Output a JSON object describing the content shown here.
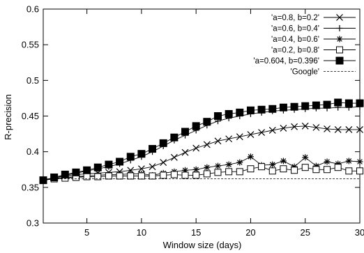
{
  "chart_data": {
    "type": "line",
    "title": "",
    "xlabel": "Window size (days)",
    "ylabel": "R-precision",
    "xlim": [
      1,
      30
    ],
    "ylim": [
      0.3,
      0.6
    ],
    "xticks": [
      5,
      10,
      15,
      20,
      25,
      30
    ],
    "yticks": [
      0.3,
      0.35,
      0.4,
      0.45,
      0.5,
      0.55,
      0.6
    ],
    "xtick_labels": [
      "5",
      "10",
      "15",
      "20",
      "25",
      "30"
    ],
    "ytick_labels": [
      "0.3",
      "0.35",
      "0.4",
      "0.45",
      "0.5",
      "0.55",
      "0.6"
    ],
    "grid": false,
    "legend_position": "top-right",
    "x": [
      1,
      2,
      3,
      4,
      5,
      6,
      7,
      8,
      9,
      10,
      11,
      12,
      13,
      14,
      15,
      16,
      17,
      18,
      19,
      20,
      21,
      22,
      23,
      24,
      25,
      26,
      27,
      28,
      29,
      30
    ],
    "series": [
      {
        "name": "'a=0.8, b=0.2'",
        "marker": "x",
        "values": [
          0.36,
          0.363,
          0.366,
          0.368,
          0.369,
          0.37,
          0.371,
          0.372,
          0.374,
          0.376,
          0.379,
          0.385,
          0.392,
          0.399,
          0.405,
          0.41,
          0.415,
          0.418,
          0.421,
          0.424,
          0.427,
          0.43,
          0.433,
          0.435,
          0.436,
          0.434,
          0.432,
          0.431,
          0.431,
          0.431
        ]
      },
      {
        "name": "'a=0.6, b=0.4'",
        "marker": "plus",
        "values": [
          0.36,
          0.363,
          0.367,
          0.37,
          0.373,
          0.376,
          0.379,
          0.383,
          0.388,
          0.393,
          0.4,
          0.408,
          0.416,
          0.423,
          0.43,
          0.437,
          0.443,
          0.447,
          0.45,
          0.453,
          0.455,
          0.457,
          0.458,
          0.459,
          0.46,
          0.461,
          0.461,
          0.462,
          0.462,
          0.463
        ]
      },
      {
        "name": "'a=0.4, b=0.6'",
        "marker": "star",
        "values": [
          0.36,
          0.362,
          0.364,
          0.365,
          0.366,
          0.367,
          0.368,
          0.368,
          0.369,
          0.369,
          0.367,
          0.37,
          0.372,
          0.374,
          0.375,
          0.378,
          0.38,
          0.382,
          0.385,
          0.393,
          0.381,
          0.382,
          0.387,
          0.379,
          0.392,
          0.38,
          0.386,
          0.383,
          0.387,
          0.386
        ]
      },
      {
        "name": "'a=0.2, b=0.8'",
        "marker": "open-square",
        "values": [
          0.36,
          0.362,
          0.363,
          0.364,
          0.365,
          0.365,
          0.366,
          0.366,
          0.366,
          0.366,
          0.366,
          0.367,
          0.368,
          0.367,
          0.367,
          0.369,
          0.371,
          0.372,
          0.372,
          0.376,
          0.379,
          0.373,
          0.376,
          0.374,
          0.378,
          0.375,
          0.375,
          0.378,
          0.373,
          0.373
        ]
      },
      {
        "name": "'a=0.604, b=0.396'",
        "marker": "filled-square",
        "values": [
          0.36,
          0.364,
          0.368,
          0.371,
          0.374,
          0.378,
          0.382,
          0.386,
          0.393,
          0.397,
          0.404,
          0.412,
          0.42,
          0.428,
          0.436,
          0.442,
          0.45,
          0.453,
          0.455,
          0.458,
          0.459,
          0.46,
          0.462,
          0.463,
          0.464,
          0.465,
          0.466,
          0.469,
          0.468,
          0.468
        ]
      },
      {
        "name": "'Google'",
        "marker": "none",
        "dashed": true,
        "values": [
          0.362,
          0.362,
          0.362,
          0.362,
          0.362,
          0.362,
          0.362,
          0.362,
          0.362,
          0.362,
          0.362,
          0.362,
          0.362,
          0.362,
          0.362,
          0.362,
          0.362,
          0.362,
          0.362,
          0.362,
          0.362,
          0.362,
          0.362,
          0.362,
          0.362,
          0.362,
          0.362,
          0.362,
          0.362,
          0.362
        ]
      }
    ]
  }
}
